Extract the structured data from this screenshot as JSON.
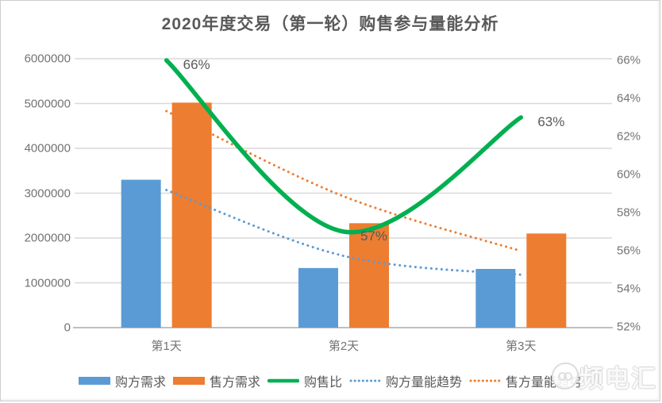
{
  "title": "2020年度交易（第一轮）购售参与量能分析",
  "chart_data": {
    "type": "bar",
    "subtype": "combo-bar-line",
    "title": "2020年度交易（第一轮）购售参与量能分析",
    "categories": [
      "第1天",
      "第2天",
      "第3天"
    ],
    "series": [
      {
        "name": "购方需求",
        "kind": "bar",
        "axis": "left",
        "color": "#5B9BD5",
        "values": [
          3300000,
          1330000,
          1310000
        ]
      },
      {
        "name": "售方需求",
        "kind": "bar",
        "axis": "left",
        "color": "#ED7D31",
        "values": [
          5020000,
          2330000,
          2100000
        ]
      },
      {
        "name": "购售比",
        "kind": "line",
        "axis": "right",
        "color": "#00B050",
        "values": [
          66,
          57,
          63
        ],
        "point_labels": [
          "66%",
          "57%",
          "63%"
        ]
      },
      {
        "name": "购方量能趋势",
        "kind": "dotted-line",
        "axis": "left",
        "color": "#5B9BD5",
        "values": [
          3070000,
          1600000,
          1180000
        ]
      },
      {
        "name": "售方量能趋势",
        "kind": "dotted-line",
        "axis": "left",
        "color": "#ED7D31",
        "values": [
          4830000,
          2930000,
          1710000
        ]
      }
    ],
    "left_axis": {
      "min": 0,
      "max": 6000000,
      "step": 1000000,
      "tick_labels": [
        "6000000",
        "5000000",
        "4000000",
        "3000000",
        "2000000",
        "1000000",
        "0"
      ]
    },
    "right_axis": {
      "min": 52,
      "max": 66,
      "step": 2,
      "tick_labels": [
        "66%",
        "64%",
        "62%",
        "60%",
        "58%",
        "56%",
        "54%",
        "52%"
      ]
    },
    "grid": true,
    "legend_position": "bottom",
    "xlabel": "",
    "ylabel": ""
  },
  "colors": {
    "grid": "#D9D9D9",
    "axis_line": "#BFBFBF",
    "text": "#595959",
    "tick_text": "#737373",
    "background": "#FFFFFF"
  },
  "watermark": {
    "text": "频电汇",
    "icon": "blob-face-logo"
  }
}
